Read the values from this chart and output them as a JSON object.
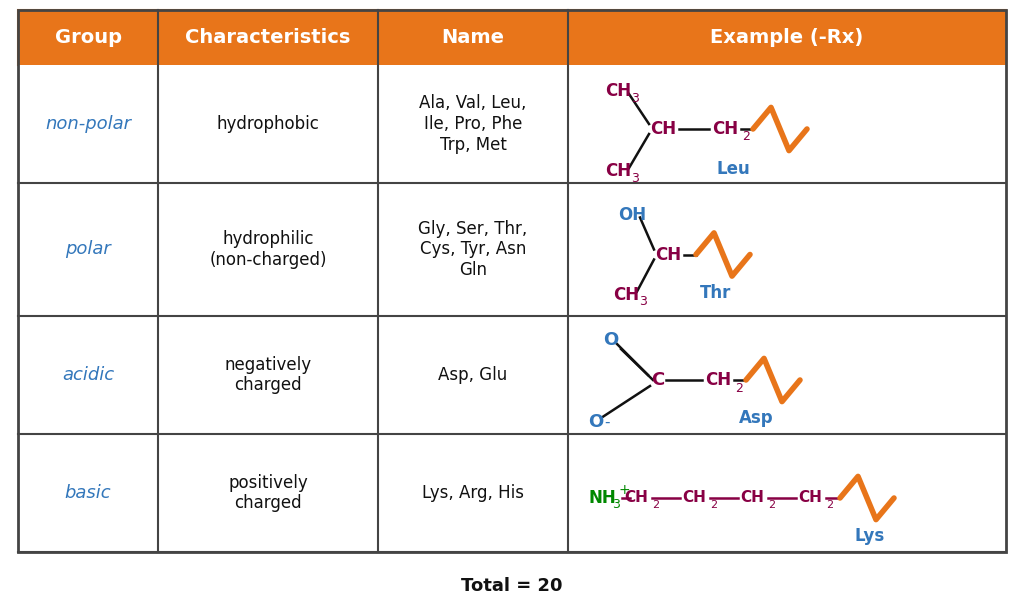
{
  "figsize": [
    10.24,
    6.01
  ],
  "dpi": 100,
  "bg_color": "#ffffff",
  "header_bg": "#e8751a",
  "header_text_color": "#ffffff",
  "header_labels": [
    "Group",
    "Characteristics",
    "Name",
    "Example (-Rx)"
  ],
  "border_color": "#444444",
  "blue_color": "#3377bb",
  "dark_red": "#880044",
  "green_color": "#008800",
  "orange_color": "#e8751a",
  "black_color": "#111111",
  "rows": [
    {
      "group": "non-polar",
      "characteristics": "hydrophobic",
      "name": "Ala, Val, Leu,\nIle, Pro, Phe\nTrp, Met"
    },
    {
      "group": "polar",
      "characteristics": "hydrophilic\n(non-charged)",
      "name": "Gly, Ser, Thr,\nCys, Tyr, Asn\nGln"
    },
    {
      "group": "acidic",
      "characteristics": "negatively\ncharged",
      "name": "Asp, Glu"
    },
    {
      "group": "basic",
      "characteristics": "positively\ncharged",
      "name": "Lys, Arg, His"
    }
  ],
  "total_label": "Total = 20"
}
